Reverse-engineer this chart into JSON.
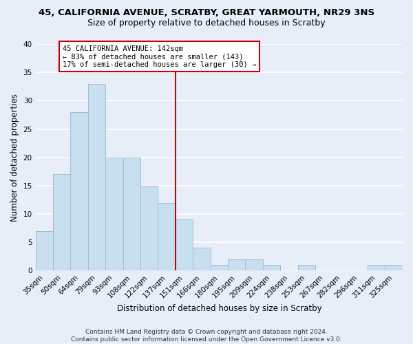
{
  "title_line1": "45, CALIFORNIA AVENUE, SCRATBY, GREAT YARMOUTH, NR29 3NS",
  "title_line2": "Size of property relative to detached houses in Scratby",
  "xlabel": "Distribution of detached houses by size in Scratby",
  "ylabel": "Number of detached properties",
  "footer": "Contains HM Land Registry data © Crown copyright and database right 2024.\nContains public sector information licensed under the Open Government Licence v3.0.",
  "bin_labels": [
    "35sqm",
    "50sqm",
    "64sqm",
    "79sqm",
    "93sqm",
    "108sqm",
    "122sqm",
    "137sqm",
    "151sqm",
    "166sqm",
    "180sqm",
    "195sqm",
    "209sqm",
    "224sqm",
    "238sqm",
    "253sqm",
    "267sqm",
    "282sqm",
    "296sqm",
    "311sqm",
    "325sqm"
  ],
  "bar_heights": [
    7,
    17,
    28,
    33,
    20,
    20,
    15,
    12,
    9,
    4,
    1,
    2,
    2,
    1,
    0,
    1,
    0,
    0,
    0,
    1,
    1
  ],
  "bar_color": "#c8dff0",
  "bar_edge_color": "#a0bcd8",
  "vline_x": 7.5,
  "vline_color": "#cc0000",
  "annotation_text": "45 CALIFORNIA AVENUE: 142sqm\n← 83% of detached houses are smaller (143)\n17% of semi-detached houses are larger (30) →",
  "annotation_box_color": "#ffffff",
  "annotation_box_edge": "#cc0000",
  "ylim": [
    0,
    40
  ],
  "yticks": [
    0,
    5,
    10,
    15,
    20,
    25,
    30,
    35,
    40
  ],
  "background_color": "#e8eef8",
  "plot_bg_color": "#e8eef8",
  "grid_color": "#ffffff",
  "title_fontsize": 9.5,
  "subtitle_fontsize": 9,
  "axis_label_fontsize": 8.5,
  "tick_fontsize": 7.5,
  "footer_fontsize": 6.5
}
